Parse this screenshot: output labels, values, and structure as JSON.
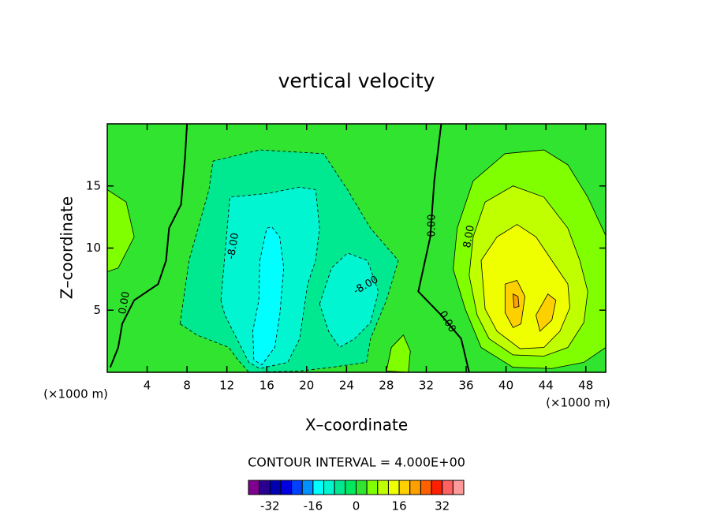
{
  "chart_data": {
    "type": "contour",
    "title": "vertical velocity",
    "x_label": "X–coordinate",
    "y_label": "Z–coordinate",
    "x_unit": "(×1000 m)",
    "x_unit_right": "(×1000 m)",
    "contour_interval_text": "CONTOUR INTERVAL = 4.000E+00",
    "xlim": [
      0,
      50
    ],
    "ylim": [
      0,
      20
    ],
    "xticks": [
      4,
      8,
      12,
      16,
      20,
      24,
      28,
      32,
      36,
      40,
      44,
      48
    ],
    "yticks": [
      5,
      10,
      15
    ],
    "colorbar": {
      "levels": [
        -40,
        -36,
        -32,
        -28,
        -24,
        -20,
        -16,
        -12,
        -8,
        -4,
        0,
        4,
        8,
        12,
        16,
        20,
        24,
        28,
        32,
        36,
        40
      ],
      "colors": [
        "#800090",
        "#2a0090",
        "#0000b0",
        "#0000e0",
        "#0040ff",
        "#0090ff",
        "#00ffff",
        "#00f5d0",
        "#00e890",
        "#00e860",
        "#30e430",
        "#80ff00",
        "#c0ff00",
        "#f0ff00",
        "#ffd000",
        "#ffa000",
        "#ff6000",
        "#ff2000",
        "#ff6060",
        "#ff9a9a"
      ],
      "ticks": [
        -32,
        -16,
        0,
        16,
        32
      ]
    },
    "fills": [
      {
        "level": 0,
        "x": [
          0,
          50,
          50,
          0
        ],
        "y": [
          0,
          0,
          20,
          20
        ]
      },
      {
        "level": -8,
        "x": [
          7.3,
          8.2,
          10.2,
          10.6,
          15.3,
          21.7,
          24.1,
          26.4,
          29.2,
          28.0,
          26.4,
          26.0,
          22.5,
          19.3,
          14.2,
          13.0,
          12.2,
          9.0
        ],
        "y": [
          3.9,
          9.0,
          14.7,
          17.0,
          17.9,
          17.6,
          14.7,
          11.6,
          9.0,
          5.8,
          2.7,
          0.8,
          0.4,
          0.1,
          0,
          1.1,
          2.0,
          3.0
        ]
      },
      {
        "level": -12,
        "x": [
          11.4,
          12.3,
          16.1,
          19.3,
          20.9,
          21.3,
          20.9,
          20.1,
          19.3,
          18.1,
          15.3,
          14.2,
          13.0,
          11.8
        ],
        "y": [
          5.8,
          14.1,
          14.4,
          14.9,
          14.7,
          11.6,
          9.0,
          7.1,
          2.7,
          0.8,
          0.3,
          0.8,
          2.7,
          4.6
        ]
      },
      {
        "level": -12,
        "x": [
          21.3,
          22.5,
          24.1,
          26.1,
          27.2,
          26.4,
          24.8,
          23.3,
          22.2
        ],
        "y": [
          5.5,
          8.4,
          9.6,
          9.0,
          6.5,
          4.0,
          2.7,
          2.0,
          3.3
        ]
      },
      {
        "level": -16,
        "x": [
          15.3,
          16.0,
          16.5,
          17.3,
          17.7,
          17.3,
          16.8,
          15.5,
          14.7,
          14.6,
          15.2
        ],
        "y": [
          9.0,
          11.6,
          11.7,
          10.9,
          8.4,
          4.6,
          2.0,
          0.6,
          1.0,
          3.3,
          5.8
        ]
      },
      {
        "level": 4,
        "x": [
          35.1,
          36.7,
          39.9,
          43.8,
          46.2,
          48.2,
          50,
          50,
          47.8,
          44.6,
          40.7,
          37.5,
          35.9,
          34.7
        ],
        "y": [
          11.6,
          15.4,
          17.6,
          17.9,
          16.7,
          14.1,
          11.0,
          2.0,
          0.8,
          0.3,
          0.4,
          2.0,
          5.1,
          8.3
        ]
      },
      {
        "level": 4,
        "x": [
          0,
          1.9,
          2.7,
          1.1,
          0
        ],
        "y": [
          14.7,
          13.7,
          10.9,
          8.4,
          8.1
        ]
      },
      {
        "level": 4,
        "x": [
          28.0,
          28.5,
          29.7,
          30.4,
          30.2
        ],
        "y": [
          0.1,
          2.0,
          3.0,
          1.7,
          0
        ]
      },
      {
        "level": 8,
        "x": [
          36.7,
          37.9,
          40.7,
          43.8,
          46.2,
          47.4,
          48.2,
          47.8,
          46.2,
          43.8,
          40.7,
          38.3,
          37.1,
          36.3
        ],
        "y": [
          10.9,
          13.7,
          15.0,
          14.1,
          11.6,
          9.0,
          6.5,
          4.0,
          2.0,
          1.3,
          1.4,
          2.7,
          4.6,
          7.8
        ]
      },
      {
        "level": 12,
        "x": [
          37.5,
          39.1,
          41.1,
          43.0,
          44.6,
          46.2,
          46.4,
          45.4,
          43.8,
          41.4,
          39.1,
          37.9
        ],
        "y": [
          9.0,
          10.9,
          11.9,
          10.9,
          9.0,
          7.1,
          5.2,
          3.3,
          2.0,
          1.9,
          3.3,
          5.1
        ]
      },
      {
        "level": 16,
        "x": [
          39.9,
          41.1,
          41.9,
          41.5,
          40.7,
          39.9
        ],
        "y": [
          7.1,
          7.4,
          6.1,
          3.9,
          3.6,
          4.8
        ]
      },
      {
        "level": 16,
        "x": [
          43.0,
          44.2,
          45.0,
          44.6,
          43.4
        ],
        "y": [
          4.6,
          6.3,
          5.8,
          4.2,
          3.3
        ]
      },
      {
        "level": 20,
        "x": [
          40.7,
          41.2,
          41.3,
          40.8
        ],
        "y": [
          6.3,
          6.1,
          5.3,
          5.2
        ]
      }
    ],
    "lines": [
      {
        "level": 0,
        "x": [
          8.0,
          7.8,
          7.4,
          6.2,
          5.9,
          5.1,
          2.7,
          1.5,
          1.1,
          0.3
        ],
        "y": [
          20,
          17.3,
          13.5,
          11.6,
          9.0,
          7.1,
          5.8,
          3.9,
          2.0,
          0.4
        ]
      },
      {
        "level": 0,
        "x": [
          33.5,
          32.8,
          32.4,
          31.2,
          33.5,
          35.5,
          36.3
        ],
        "y": [
          20,
          15.4,
          10.9,
          6.5,
          4.6,
          2.7,
          0
        ]
      }
    ],
    "contour_labels": [
      "0.00",
      "-8.00",
      "-8.00",
      "0.00",
      "0.00",
      "8.00"
    ]
  }
}
